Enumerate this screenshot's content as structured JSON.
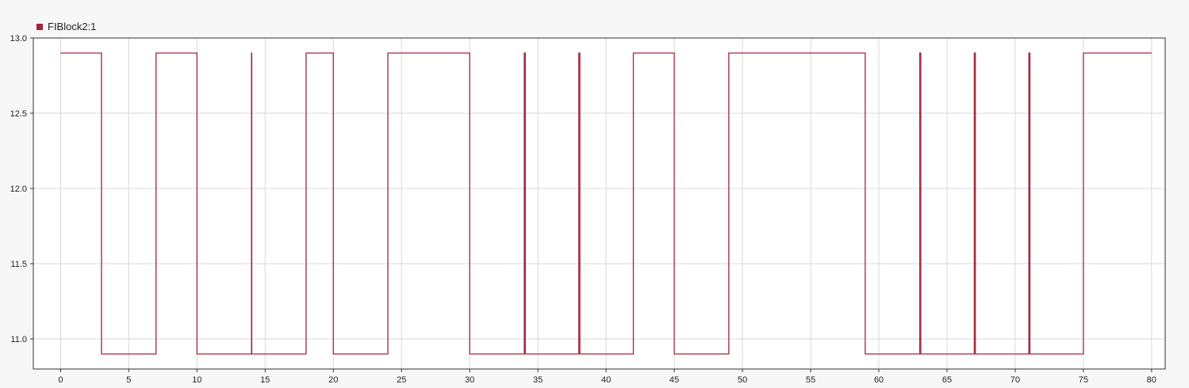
{
  "legend": {
    "label": "FIBlock2:1",
    "color": "#a4243b"
  },
  "chart_data": {
    "type": "line",
    "step": true,
    "xlim": [
      -2,
      81
    ],
    "ylim": [
      10.8,
      13.0
    ],
    "x_ticks": [
      0,
      5,
      10,
      15,
      20,
      25,
      30,
      35,
      40,
      45,
      50,
      55,
      60,
      65,
      70,
      75,
      80
    ],
    "y_ticks": [
      11.0,
      11.5,
      12.0,
      12.5,
      13.0
    ],
    "y_tick_labels": [
      "11.0",
      "11.5",
      "12.0",
      "12.5",
      "13.0"
    ],
    "grid": true,
    "legend_position": "top-left",
    "series": [
      {
        "name": "FIBlock2:1",
        "color": "#a4243b",
        "points": [
          [
            0,
            12.9
          ],
          [
            3,
            12.9
          ],
          [
            3,
            10.9
          ],
          [
            7,
            10.9
          ],
          [
            7,
            12.9
          ],
          [
            10,
            12.9
          ],
          [
            10,
            10.9
          ],
          [
            14,
            10.9
          ],
          [
            14,
            12.9
          ],
          [
            14.02,
            12.9
          ],
          [
            14.02,
            10.9
          ],
          [
            18,
            10.9
          ],
          [
            18,
            12.9
          ],
          [
            20,
            12.9
          ],
          [
            20,
            10.9
          ],
          [
            24,
            10.9
          ],
          [
            24,
            12.9
          ],
          [
            30,
            12.9
          ],
          [
            30,
            10.9
          ],
          [
            34,
            10.9
          ],
          [
            34,
            12.9
          ],
          [
            34.08,
            12.9
          ],
          [
            34.08,
            10.9
          ],
          [
            38,
            10.9
          ],
          [
            38,
            12.9
          ],
          [
            38.08,
            12.9
          ],
          [
            38.08,
            10.9
          ],
          [
            42,
            10.9
          ],
          [
            42,
            12.9
          ],
          [
            45,
            12.9
          ],
          [
            45,
            10.9
          ],
          [
            49,
            10.9
          ],
          [
            49,
            12.9
          ],
          [
            59,
            12.9
          ],
          [
            59,
            10.9
          ],
          [
            63,
            10.9
          ],
          [
            63,
            12.9
          ],
          [
            63.08,
            12.9
          ],
          [
            63.08,
            10.9
          ],
          [
            67,
            10.9
          ],
          [
            67,
            12.9
          ],
          [
            67.08,
            12.9
          ],
          [
            67.08,
            10.9
          ],
          [
            71,
            10.9
          ],
          [
            71,
            12.9
          ],
          [
            71.08,
            12.9
          ],
          [
            71.08,
            10.9
          ],
          [
            75,
            10.9
          ],
          [
            75,
            12.9
          ],
          [
            80,
            12.9
          ]
        ]
      }
    ]
  }
}
